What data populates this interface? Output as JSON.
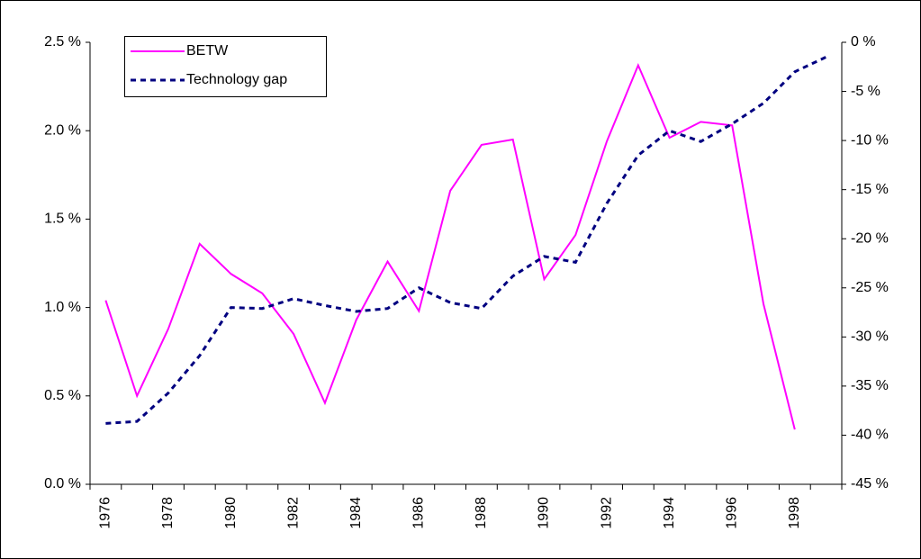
{
  "chart_data": {
    "type": "line",
    "categories": [
      "1976",
      null,
      "1978",
      null,
      "1980",
      null,
      "1982",
      null,
      "1984",
      null,
      "1986",
      null,
      "1988",
      null,
      "1990",
      null,
      "1992",
      null,
      "1994",
      null,
      "1996",
      null,
      "1998",
      null
    ],
    "series": [
      {
        "name": "BETW",
        "color": "#ff00ff",
        "style": "solid",
        "values": [
          1.04,
          0.5,
          0.88,
          1.36,
          1.19,
          1.08,
          0.85,
          0.46,
          0.93,
          1.26,
          0.98,
          1.66,
          1.92,
          1.95,
          1.16,
          1.41,
          1.94,
          2.37,
          1.96,
          2.05,
          2.03,
          1.02,
          0.31,
          null
        ]
      },
      {
        "name": "Technology gap",
        "color": "#000080",
        "style": "dashed",
        "axis": "y2",
        "values": [
          -38.8,
          -38.6,
          -35.7,
          -31.9,
          -27.0,
          -27.1,
          -26.1,
          -26.8,
          -27.4,
          -27.1,
          -25.0,
          -26.5,
          -27.1,
          -23.8,
          -21.8,
          -22.4,
          -16.4,
          -11.5,
          -9.0,
          -10.1,
          -8.3,
          -6.2,
          -3.0,
          -1.5
        ]
      }
    ],
    "ylim": [
      0,
      2.5
    ],
    "yticks": [
      {
        "value": 0,
        "label": "0.0 %"
      },
      {
        "value": 0.5,
        "label": "0.5 %"
      },
      {
        "value": 1.0,
        "label": "1.0 %"
      },
      {
        "value": 1.5,
        "label": "1.5 %"
      },
      {
        "value": 2.0,
        "label": "2.0 %"
      },
      {
        "value": 2.5,
        "label": "2.5 %"
      }
    ],
    "y2lim": [
      -45,
      0
    ],
    "y2ticks": [
      {
        "value": -45,
        "label": "-45 %"
      },
      {
        "value": -40,
        "label": "-40 %"
      },
      {
        "value": -35,
        "label": "-35 %"
      },
      {
        "value": -30,
        "label": "-30 %"
      },
      {
        "value": -25,
        "label": "-25 %"
      },
      {
        "value": -20,
        "label": "-20 %"
      },
      {
        "value": -15,
        "label": "-15 %"
      },
      {
        "value": -10,
        "label": "-10 %"
      },
      {
        "value": -5,
        "label": "-5 %"
      },
      {
        "value": 0,
        "label": "0 %"
      }
    ],
    "legend": "top-left"
  }
}
